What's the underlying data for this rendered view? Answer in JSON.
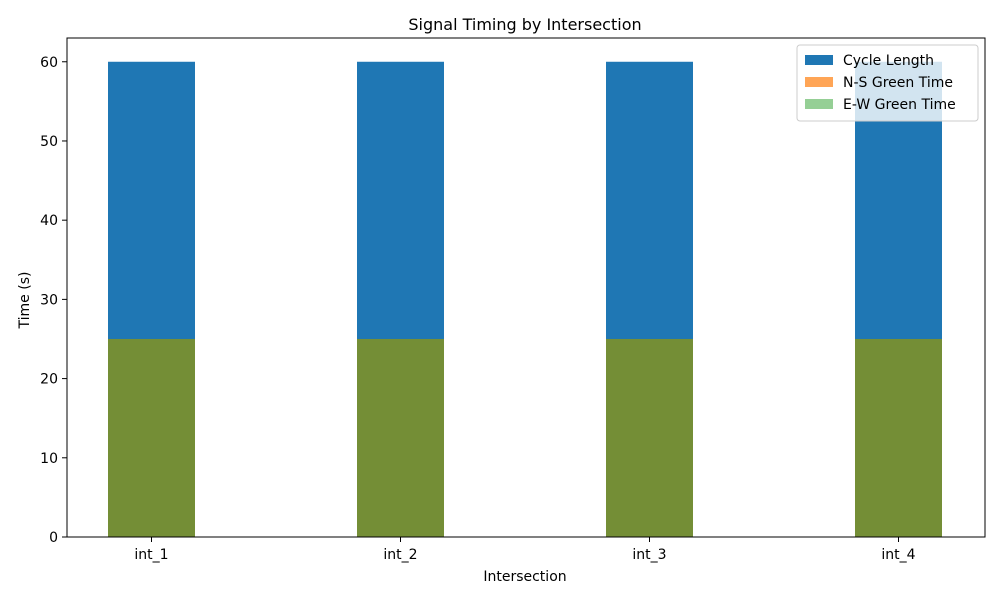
{
  "chart_data": {
    "type": "bar",
    "title": "Signal Timing by Intersection",
    "xlabel": "Intersection",
    "ylabel": "Time (s)",
    "categories": [
      "int_1",
      "int_2",
      "int_3",
      "int_4"
    ],
    "ylim": [
      0,
      63
    ],
    "yticks": [
      0,
      10,
      20,
      30,
      40,
      50,
      60
    ],
    "grid": false,
    "legend_position": "top-right",
    "series": [
      {
        "name": "Cycle Length",
        "values": [
          60,
          60,
          60,
          60
        ],
        "color": "#1f77b4",
        "opacity": 1.0
      },
      {
        "name": "N-S Green Time",
        "values": [
          25,
          25,
          25,
          25
        ],
        "color": "#ff7f0e",
        "opacity": 0.7
      },
      {
        "name": "E-W Green Time",
        "values": [
          25,
          25,
          25,
          25
        ],
        "color": "#2ca02c",
        "opacity": 0.5
      }
    ]
  }
}
